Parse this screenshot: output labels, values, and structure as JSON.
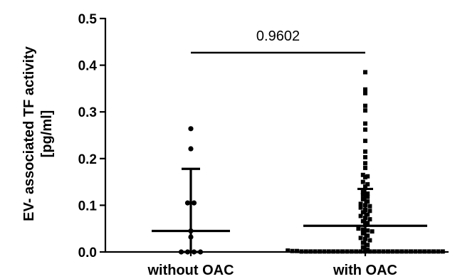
{
  "chart_data": {
    "type": "scatter",
    "ylabel_line1": "EV- associated TF activity",
    "ylabel_line2": "[pg/ml]",
    "ylim": [
      0,
      0.5
    ],
    "yticks": [
      "0.0",
      "0.1",
      "0.2",
      "0.3",
      "0.4",
      "0.5"
    ],
    "yticks_values": [
      0,
      0.1,
      0.2,
      0.3,
      0.4,
      0.5
    ],
    "categories": [
      "without OAC",
      "with OAC"
    ],
    "significance": {
      "label": "0.9602",
      "between": [
        "without OAC",
        "with OAC"
      ]
    },
    "series": [
      {
        "category": "without OAC",
        "marker": "circle",
        "central": 0.045,
        "error_low": 0.0,
        "error_high": 0.178,
        "points": [
          0.264,
          0.221,
          0.105,
          0.105,
          0.045,
          0.032,
          0.0,
          0.0,
          0.0,
          0.0
        ]
      },
      {
        "category": "with OAC",
        "marker": "square",
        "central": 0.056,
        "error_low": 0.0,
        "error_high": 0.135,
        "points": [
          0.385,
          0.348,
          0.34,
          0.313,
          0.303,
          0.275,
          0.262,
          0.238,
          0.215,
          0.203,
          0.19,
          0.18,
          0.165,
          0.162,
          0.16,
          0.15,
          0.145,
          0.14,
          0.128,
          0.125,
          0.122,
          0.118,
          0.113,
          0.108,
          0.103,
          0.1,
          0.098,
          0.095,
          0.09,
          0.088,
          0.085,
          0.08,
          0.077,
          0.073,
          0.07,
          0.066,
          0.062,
          0.058,
          0.05,
          0.048,
          0.046,
          0.044,
          0.04,
          0.035,
          0.03,
          0.028,
          0.025,
          0.02,
          0.015,
          0.01,
          0.005,
          0.003,
          0.002,
          0.002,
          0.001,
          0.001,
          0.001,
          0.001,
          0.001,
          0.001,
          0.001,
          0.001,
          0.001,
          0.001,
          0.001,
          0.001,
          0.001,
          0.001,
          0.001,
          0.001,
          0.001,
          0.001,
          0.001,
          0.001,
          0.001,
          0.001,
          0.001,
          0.001,
          0.001,
          0.001,
          0.001,
          0.001,
          0.001,
          0.001,
          0.001,
          0.001
        ]
      }
    ]
  }
}
